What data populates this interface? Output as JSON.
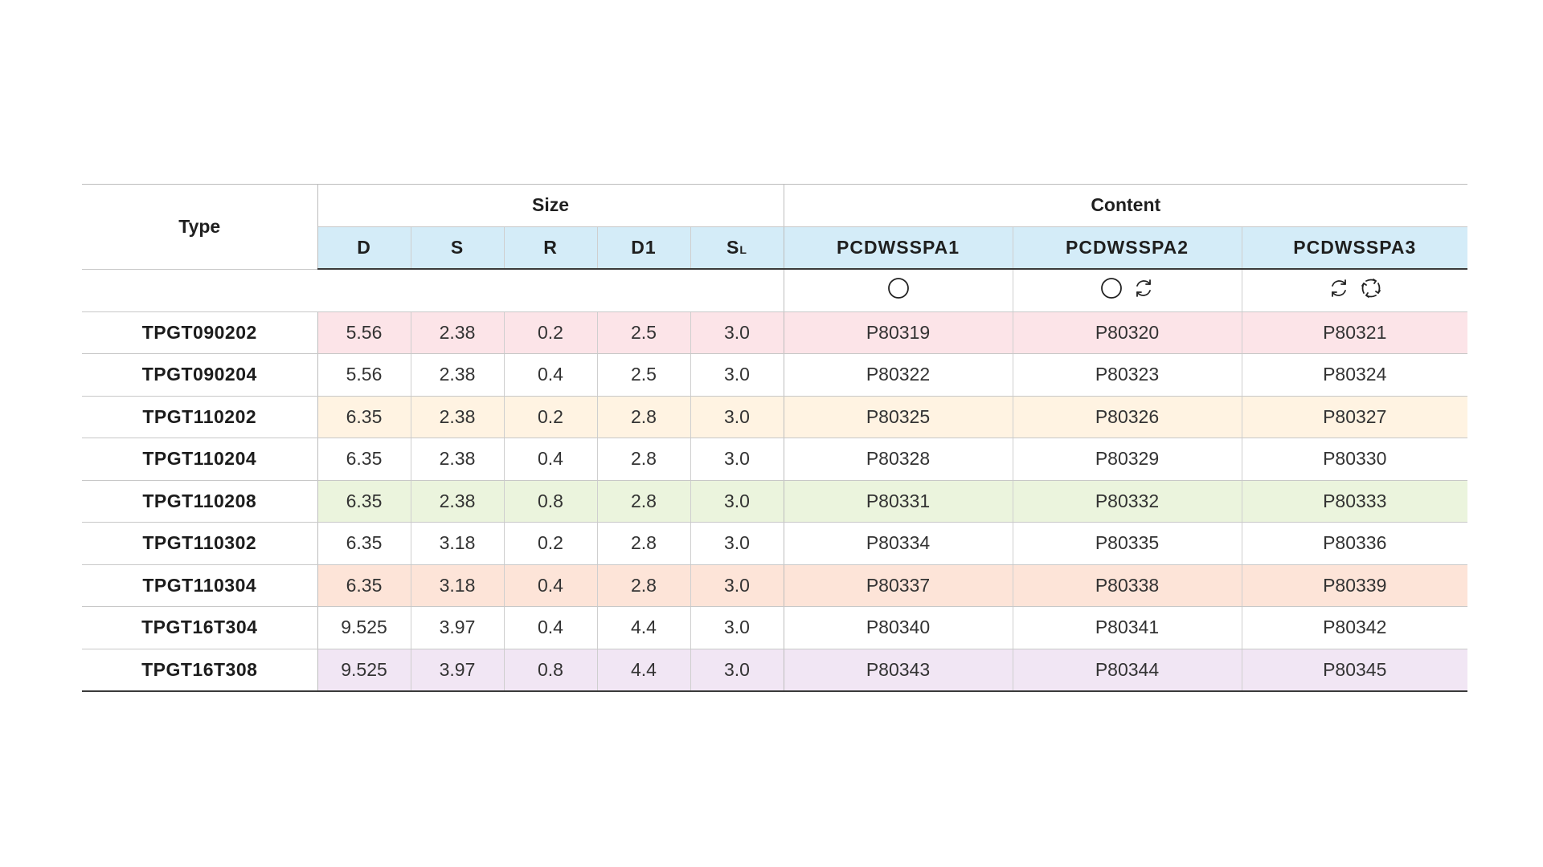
{
  "table": {
    "header": {
      "type": "Type",
      "size_group": "Size",
      "content_group": "Content",
      "size_cols": [
        "D",
        "S",
        "R",
        "D1"
      ],
      "sl_main": "S",
      "sl_sub": "L",
      "content_cols": [
        "PCDWSSPA1",
        "PCDWSSPA2",
        "PCDWSSPA3"
      ]
    },
    "icons": [
      [
        "circle-icon"
      ],
      [
        "circle-icon",
        "rotate-2-icon"
      ],
      [
        "rotate-2-icon",
        "rotate-4-icon"
      ]
    ],
    "rows": [
      {
        "type": "TPGT090202",
        "d": "5.56",
        "s": "2.38",
        "r": "0.2",
        "d1": "2.5",
        "sl": "3.0",
        "c1": "P80319",
        "c2": "P80320",
        "c3": "P80321",
        "color": "#fce4e8"
      },
      {
        "type": "TPGT090204",
        "d": "5.56",
        "s": "2.38",
        "r": "0.4",
        "d1": "2.5",
        "sl": "3.0",
        "c1": "P80322",
        "c2": "P80323",
        "c3": "P80324",
        "color": "#ffffff"
      },
      {
        "type": "TPGT110202",
        "d": "6.35",
        "s": "2.38",
        "r": "0.2",
        "d1": "2.8",
        "sl": "3.0",
        "c1": "P80325",
        "c2": "P80326",
        "c3": "P80327",
        "color": "#fff3e2"
      },
      {
        "type": "TPGT110204",
        "d": "6.35",
        "s": "2.38",
        "r": "0.4",
        "d1": "2.8",
        "sl": "3.0",
        "c1": "P80328",
        "c2": "P80329",
        "c3": "P80330",
        "color": "#ffffff"
      },
      {
        "type": "TPGT110208",
        "d": "6.35",
        "s": "2.38",
        "r": "0.8",
        "d1": "2.8",
        "sl": "3.0",
        "c1": "P80331",
        "c2": "P80332",
        "c3": "P80333",
        "color": "#ebf4dd"
      },
      {
        "type": "TPGT110302",
        "d": "6.35",
        "s": "3.18",
        "r": "0.2",
        "d1": "2.8",
        "sl": "3.0",
        "c1": "P80334",
        "c2": "P80335",
        "c3": "P80336",
        "color": "#ffffff"
      },
      {
        "type": "TPGT110304",
        "d": "6.35",
        "s": "3.18",
        "r": "0.4",
        "d1": "2.8",
        "sl": "3.0",
        "c1": "P80337",
        "c2": "P80338",
        "c3": "P80339",
        "color": "#fde4d8"
      },
      {
        "type": "TPGT16T304",
        "d": "9.525",
        "s": "3.97",
        "r": "0.4",
        "d1": "4.4",
        "sl": "3.0",
        "c1": "P80340",
        "c2": "P80341",
        "c3": "P80342",
        "color": "#ffffff"
      },
      {
        "type": "TPGT16T308",
        "d": "9.525",
        "s": "3.97",
        "r": "0.8",
        "d1": "4.4",
        "sl": "3.0",
        "c1": "P80343",
        "c2": "P80344",
        "c3": "P80345",
        "color": "#f1e6f4"
      }
    ]
  }
}
